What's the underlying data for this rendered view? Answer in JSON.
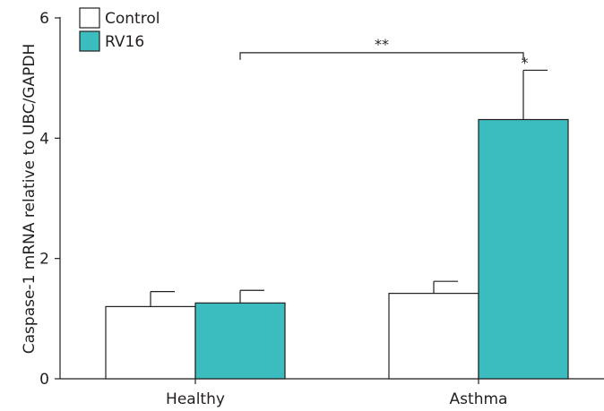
{
  "chart_data": {
    "type": "bar",
    "title": "",
    "xlabel": "",
    "ylabel": "Caspase-1 mRNA relative to UBC/GAPDH",
    "ylim": [
      0,
      6
    ],
    "yticks": [
      "0",
      "2",
      "4",
      "6"
    ],
    "categories": [
      "Healthy",
      "Asthma"
    ],
    "series": [
      {
        "name": "Control",
        "color": "#ffffff",
        "values": [
          1.2,
          1.42
        ],
        "errors": [
          0.25,
          0.2
        ]
      },
      {
        "name": "RV16",
        "color": "#3bbcbf",
        "values": [
          1.26,
          4.31
        ],
        "errors": [
          0.21,
          0.82
        ]
      }
    ],
    "annotations": [
      {
        "type": "bracket",
        "from_category": "Healthy",
        "to_category": "Asthma",
        "level": 5.6,
        "label": "**"
      },
      {
        "type": "star",
        "category": "Asthma",
        "series": "RV16",
        "label": "*"
      }
    ],
    "legend": "top-left",
    "grid": false,
    "bar_stroke": "#231f20"
  }
}
